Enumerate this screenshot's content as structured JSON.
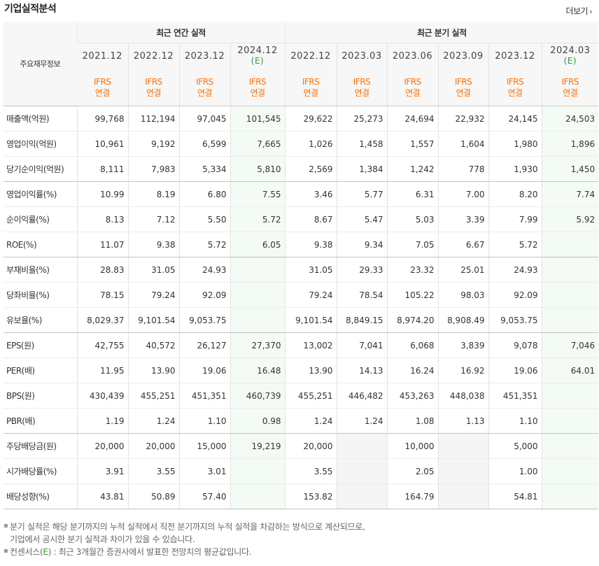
{
  "title": "기업실적분석",
  "more": "더보기",
  "header": {
    "label": "주요재무정보",
    "annual_group": "최근 연간 실적",
    "quarterly_group": "최근 분기 실적",
    "periods": [
      {
        "date": "2021.12",
        "est": ""
      },
      {
        "date": "2022.12",
        "est": ""
      },
      {
        "date": "2023.12",
        "est": ""
      },
      {
        "date": "2024.12",
        "est": "(E)"
      },
      {
        "date": "2022.12",
        "est": ""
      },
      {
        "date": "2023.03",
        "est": ""
      },
      {
        "date": "2023.06",
        "est": ""
      },
      {
        "date": "2023.09",
        "est": ""
      },
      {
        "date": "2023.12",
        "est": ""
      },
      {
        "date": "2024.03",
        "est": "(E)"
      }
    ],
    "acct_line1": "IFRS",
    "acct_line2": "연결"
  },
  "rows": [
    {
      "label": "매출액(억원)",
      "values": [
        "99,768",
        "112,194",
        "97,045",
        "101,545",
        "29,622",
        "25,273",
        "24,694",
        "22,932",
        "24,145",
        "24,503"
      ]
    },
    {
      "label": "영업이익(억원)",
      "values": [
        "10,961",
        "9,192",
        "6,599",
        "7,665",
        "1,026",
        "1,458",
        "1,557",
        "1,604",
        "1,980",
        "1,896"
      ]
    },
    {
      "label": "당기순이익(억원)",
      "values": [
        "8,111",
        "7,983",
        "5,334",
        "5,810",
        "2,569",
        "1,384",
        "1,242",
        "778",
        "1,930",
        "1,450"
      ]
    },
    {
      "label": "영업이익률(%)",
      "values": [
        "10.99",
        "8.19",
        "6.80",
        "7.55",
        "3.46",
        "5.77",
        "6.31",
        "7.00",
        "8.20",
        "7.74"
      ]
    },
    {
      "label": "순이익률(%)",
      "values": [
        "8.13",
        "7.12",
        "5.50",
        "5.72",
        "8.67",
        "5.47",
        "5.03",
        "3.39",
        "7.99",
        "5.92"
      ]
    },
    {
      "label": "ROE(%)",
      "values": [
        "11.07",
        "9.38",
        "5.72",
        "6.05",
        "9.38",
        "9.34",
        "7.05",
        "6.67",
        "5.72",
        ""
      ]
    },
    {
      "label": "부채비율(%)",
      "values": [
        "28.83",
        "31.05",
        "24.93",
        "",
        "31.05",
        "29.33",
        "23.32",
        "25.01",
        "24.93",
        ""
      ]
    },
    {
      "label": "당좌비율(%)",
      "values": [
        "78.15",
        "79.24",
        "92.09",
        "",
        "79.24",
        "78.54",
        "105.22",
        "98.03",
        "92.09",
        ""
      ]
    },
    {
      "label": "유보율(%)",
      "values": [
        "8,029.37",
        "9,101.54",
        "9,053.75",
        "",
        "9,101.54",
        "8,849.15",
        "8,974.20",
        "8,908.49",
        "9,053.75",
        ""
      ]
    },
    {
      "label": "EPS(원)",
      "values": [
        "42,755",
        "40,572",
        "26,127",
        "27,370",
        "13,002",
        "7,041",
        "6,068",
        "3,839",
        "9,078",
        "7,046"
      ]
    },
    {
      "label": "PER(배)",
      "values": [
        "11.95",
        "13.90",
        "19.06",
        "16.48",
        "13.90",
        "14.13",
        "16.24",
        "16.92",
        "19.06",
        "64.01"
      ]
    },
    {
      "label": "BPS(원)",
      "values": [
        "430,439",
        "455,251",
        "451,351",
        "460,739",
        "455,251",
        "446,482",
        "453,263",
        "448,038",
        "451,351",
        ""
      ]
    },
    {
      "label": "PBR(배)",
      "values": [
        "1.19",
        "1.24",
        "1.10",
        "0.98",
        "1.24",
        "1.24",
        "1.08",
        "1.13",
        "1.10",
        ""
      ]
    },
    {
      "label": "주당배당금(원)",
      "values": [
        "20,000",
        "20,000",
        "15,000",
        "19,219",
        "20,000",
        "",
        "10,000",
        "",
        "5,000",
        ""
      ]
    },
    {
      "label": "시가배당률(%)",
      "values": [
        "3.91",
        "3.55",
        "3.01",
        "",
        "3.55",
        "",
        "2.05",
        "",
        "1.00",
        ""
      ]
    },
    {
      "label": "배당성향(%)",
      "values": [
        "43.81",
        "50.89",
        "57.40",
        "",
        "153.82",
        "",
        "164.79",
        "",
        "54.81",
        ""
      ]
    }
  ],
  "notes": {
    "line1": "분기 실적은 해당 분기까지의 누적 실적에서 직전 분기까지의 누적 실적을 차감하는 방식으로 계산되므로,",
    "line2": "기업에서 공시한 분기 실적과 차이가 있을 수 있습니다.",
    "line3_a": "컨센서스(",
    "line3_e": "E",
    "line3_b": ") : 최근 3개월간 증권사에서 발표한 전망치의 평균값입니다."
  }
}
